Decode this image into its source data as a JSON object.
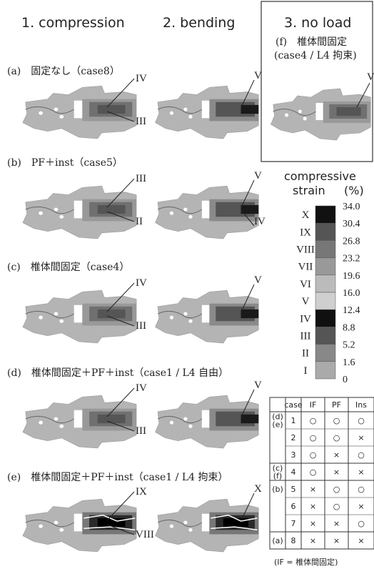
{
  "columns": [
    "1. compression",
    "2. bending",
    "3. no load"
  ],
  "panels": [
    {
      "label": "(a)　固定なし（case8）",
      "compression": [
        "IV",
        "III"
      ],
      "bending": [
        "V"
      ]
    },
    {
      "label": "(b)　PF＋inst（case5）",
      "compression": [
        "III",
        "II"
      ],
      "bending": [
        "V",
        "IV"
      ]
    },
    {
      "label": "(c)　椎体間固定（case4）",
      "compression": [
        "IV",
        "III"
      ],
      "bending": [
        "V"
      ]
    },
    {
      "label": "(d)　椎体間固定＋PF＋inst（case1 / L4 自由）",
      "compression": [
        "IV",
        "III"
      ],
      "bending": [
        "V"
      ]
    },
    {
      "label": "(e)　椎体間固定＋PF＋inst（case1 / L4 拘束）",
      "compression": [
        "IX",
        "VIII"
      ],
      "bending": [
        "X"
      ]
    }
  ],
  "no_load_panel": {
    "label_1": "(f)　椎体間固定",
    "label_2": "(case4 / L4 拘束)",
    "markers": [
      "V"
    ]
  },
  "legend": {
    "title_1": "compressive",
    "title_2": "strain",
    "unit": "(%)",
    "levels": [
      "X",
      "IX",
      "VIII",
      "VII",
      "VI",
      "V",
      "IV",
      "III",
      "II",
      "I"
    ],
    "values": [
      "34.0",
      "30.4",
      "26.8",
      "23.2",
      "19.6",
      "16.0",
      "12.4",
      "8.8",
      "5.2",
      "1.6",
      "0"
    ]
  },
  "table": {
    "header": [
      "case",
      "IF",
      "PF",
      "Ins"
    ],
    "rows": [
      {
        "group": [
          "(d)",
          "(e)"
        ],
        "cells": [
          "1",
          "○",
          "○",
          "○"
        ]
      },
      {
        "cells": [
          "2",
          "○",
          "○",
          "×"
        ]
      },
      {
        "cells": [
          "3",
          "○",
          "×",
          "○"
        ]
      },
      {
        "group": [
          "(c)",
          "(f)"
        ],
        "cells": [
          "4",
          "○",
          "×",
          "×"
        ]
      },
      {
        "group": [
          "(b)"
        ],
        "cells": [
          "5",
          "×",
          "○",
          "○"
        ]
      },
      {
        "cells": [
          "6",
          "×",
          "○",
          "×"
        ]
      },
      {
        "cells": [
          "7",
          "×",
          "×",
          "○"
        ]
      },
      {
        "group": [
          "(a)"
        ],
        "cells": [
          "8",
          "×",
          "×",
          "×"
        ]
      }
    ]
  },
  "footnote": "(IF = 椎体間固定)"
}
